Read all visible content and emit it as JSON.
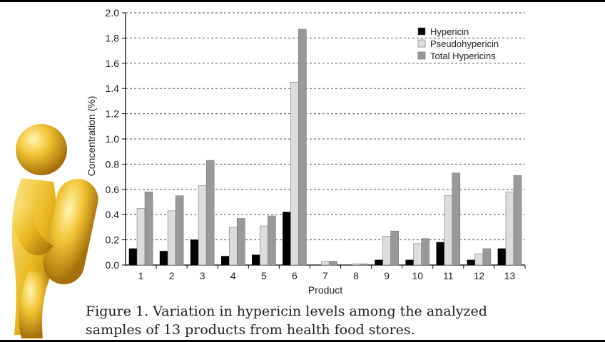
{
  "caption": {
    "line1": "Figure 1.  Variation in hypericin levels among the analyzed",
    "line2": "samples of 13 products from health food stores."
  },
  "mascot": {
    "icon": "gold-figure-holding-capsule-icon"
  },
  "chart_data": {
    "type": "bar",
    "title": "",
    "xlabel": "Product",
    "ylabel": "Concentration (%)",
    "ylim": [
      0,
      2.0
    ],
    "yticks": [
      "0.0",
      "0.2",
      "0.4",
      "0.6",
      "0.8",
      "1.0",
      "1.2",
      "1.4",
      "1.6",
      "1.8",
      "2.0"
    ],
    "grid": true,
    "legend_position": "top-right",
    "categories": [
      "1",
      "2",
      "3",
      "4",
      "5",
      "6",
      "7",
      "8",
      "9",
      "10",
      "11",
      "12",
      "13"
    ],
    "series": [
      {
        "name": "Hypericin",
        "color": "#000000",
        "values": [
          0.13,
          0.11,
          0.2,
          0.07,
          0.08,
          0.42,
          0.0,
          0.0,
          0.04,
          0.04,
          0.18,
          0.04,
          0.13
        ]
      },
      {
        "name": "Pseudohypericin",
        "color": "#dddddd",
        "values": [
          0.45,
          0.43,
          0.63,
          0.3,
          0.31,
          1.45,
          0.03,
          0.01,
          0.23,
          0.17,
          0.55,
          0.09,
          0.58
        ]
      },
      {
        "name": "Total Hypericins",
        "color": "#999999",
        "values": [
          0.58,
          0.55,
          0.83,
          0.37,
          0.39,
          1.87,
          0.03,
          0.01,
          0.27,
          0.21,
          0.73,
          0.13,
          0.71
        ]
      }
    ]
  }
}
